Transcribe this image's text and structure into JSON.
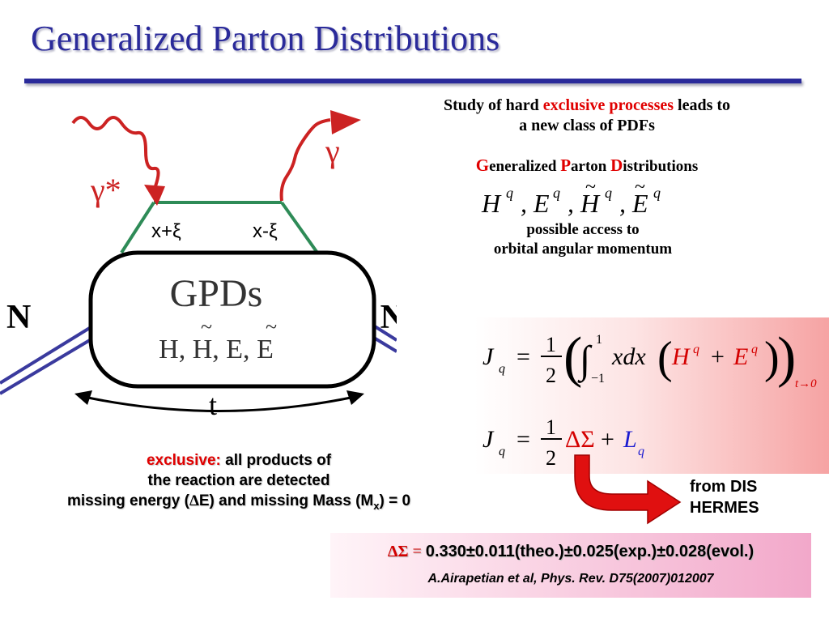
{
  "slide": {
    "title": "Generalized Parton Distributions"
  },
  "diagram": {
    "gamma_star": "γ*",
    "gamma": "γ",
    "left_vertex": "x+ξ",
    "right_vertex": "x-ξ",
    "blob_title": "GPDs",
    "blob_subtitle_parts": [
      "H, ",
      "H",
      ", E, ",
      "E"
    ],
    "nucleon_left": "N",
    "nucleon_right": "N",
    "momentum_transfer": "t",
    "colors": {
      "photon": "#cc2222",
      "quark_lines": "#2e8b57",
      "nucleon_lines": "#3a3a9e"
    }
  },
  "intro": {
    "line1_parts": [
      "Study of hard ",
      "exclusive processes",
      " leads to"
    ],
    "line2": "a new class of PDFs"
  },
  "gpd_name": {
    "g": "G",
    "g_rest": "eneralized ",
    "p": "P",
    "p_rest": "arton ",
    "d": "D",
    "d_rest": "istributions"
  },
  "functions": {
    "symbols": [
      "H",
      "E",
      "H",
      "E"
    ],
    "superscript": "q",
    "separator": ","
  },
  "access": {
    "line1": "possible access to",
    "line2": "orbital angular momentum"
  },
  "formula1": {
    "lhs": "J",
    "lhs_sub": "q",
    "equals": "=",
    "frac_num": "1",
    "frac_den": "2",
    "integral": "∫",
    "upper": "1",
    "lower": "−1",
    "integrand": "xdx",
    "h": "H",
    "e": "E",
    "sup": "q",
    "plus": "+",
    "limit": "t→0"
  },
  "formula2": {
    "lhs": "J",
    "lhs_sub": "q",
    "equals": "=",
    "frac_num": "1",
    "frac_den": "2",
    "delta_sigma": "ΔΣ",
    "plus": "+",
    "l": "L",
    "l_sub": "q"
  },
  "from_dis": {
    "line1": "from DIS",
    "line2": "HERMES"
  },
  "exclusive": {
    "label": "exclusive:",
    "line1_rest": " all products of",
    "line2": "the reaction are detected",
    "line3_prefix": "missing energy (",
    "delta": "Δ",
    "line3_mid": "E) and missing Mass (M",
    "sub_x": "x",
    "line3_suffix": ") = 0"
  },
  "result": {
    "delta_sigma": "ΔΣ",
    "equals": " = ",
    "value": "0.330±0.011(theo.)±0.025(exp.)±0.028(evol.)",
    "citation": "A.Airapetian et al, Phys. Rev. D75(2007)012007"
  }
}
